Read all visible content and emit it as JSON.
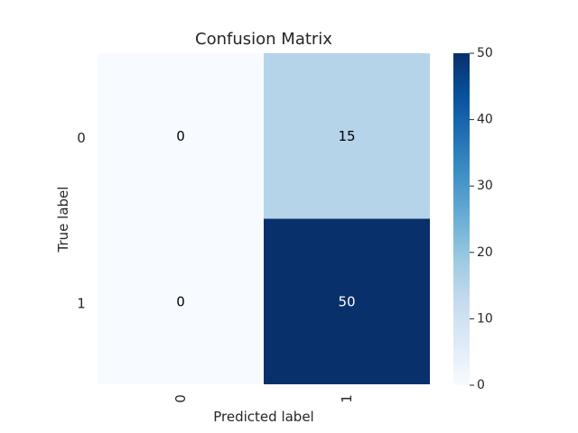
{
  "chart_data": {
    "type": "heatmap",
    "title": "Confusion Matrix",
    "xlabel": "Predicted label",
    "ylabel": "True label",
    "x_categories": [
      "0",
      "1"
    ],
    "y_categories": [
      "0",
      "1"
    ],
    "values": [
      [
        0,
        15
      ],
      [
        0,
        50
      ]
    ],
    "colorbar": {
      "min": 0,
      "max": 50,
      "ticks": [
        "0",
        "10",
        "20",
        "30",
        "40",
        "50"
      ]
    },
    "colormap": "Blues",
    "colors": {
      "low": "#f7fbff",
      "high": "#08306b",
      "text_dark": "#000000",
      "text_light": "#ffffff"
    },
    "grid": false
  }
}
